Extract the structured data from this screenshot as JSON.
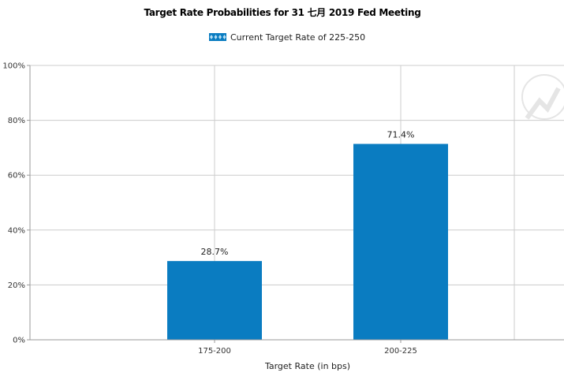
{
  "chart_data": {
    "type": "bar",
    "title": "Target Rate Probabilities for 31 七月  2019 Fed Meeting",
    "xlabel": "Target Rate (in bps)",
    "ylabel": "",
    "categories": [
      "175-200",
      "200-225"
    ],
    "values": [
      28.7,
      71.4
    ],
    "value_labels": [
      "28.7%",
      "71.4%"
    ],
    "ylim": [
      0,
      100
    ],
    "y_ticks": [
      0,
      20,
      40,
      60,
      80,
      100
    ],
    "y_tick_labels": [
      "0%",
      "20%",
      "40%",
      "60%",
      "80%",
      "100%"
    ],
    "legend": {
      "label": "Current Target Rate of 225-250",
      "placement": "top-center"
    },
    "grid": true,
    "bar_color": "#0a7cc1",
    "grid_color": "#cccccc",
    "axis_color": "#999999"
  }
}
